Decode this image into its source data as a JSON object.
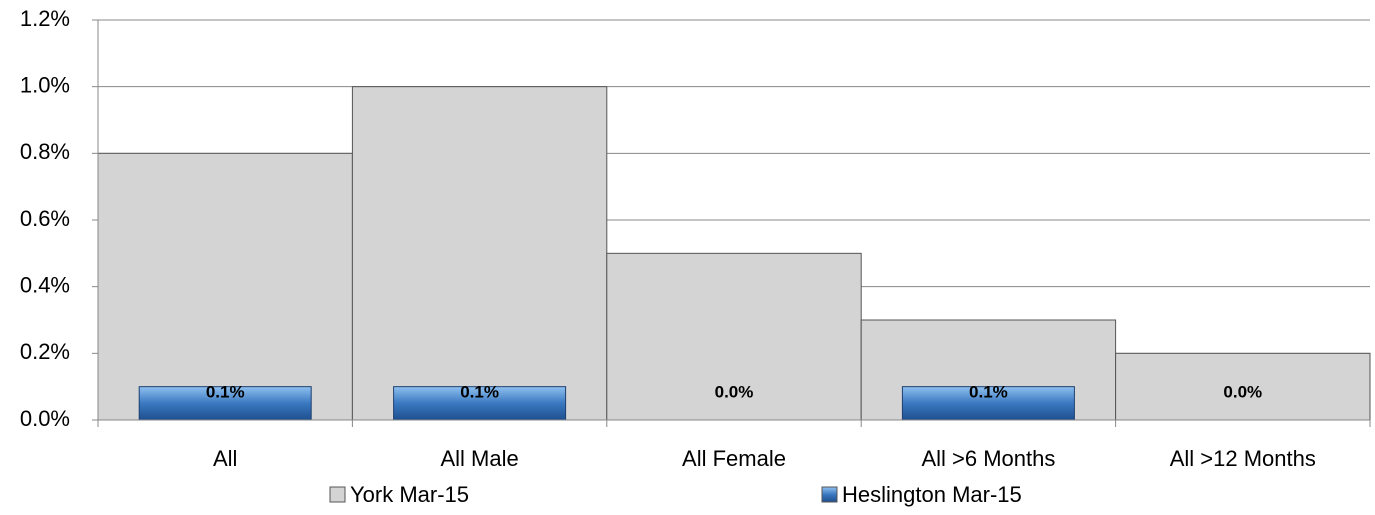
{
  "chart_data": {
    "type": "bar",
    "categories": [
      "All",
      "All Male",
      "All Female",
      "All >6 Months",
      "All >12 Months"
    ],
    "series": [
      {
        "name": "York Mar-15",
        "color": "#d4d4d4",
        "values": [
          0.8,
          1.0,
          0.5,
          0.3,
          0.2
        ]
      },
      {
        "name": "Heslington Mar-15",
        "color": "#3a78c0",
        "values": [
          0.1,
          0.1,
          0.0,
          0.1,
          0.0
        ],
        "value_labels": [
          "0.1%",
          "0.1%",
          "0.0%",
          "0.1%",
          "0.0%"
        ]
      }
    ],
    "ylim": [
      0,
      1.2
    ],
    "yticks": [
      {
        "value": 0,
        "label": "0.0%"
      },
      {
        "value": 0.2,
        "label": "0.2%"
      },
      {
        "value": 0.4,
        "label": "0.4%"
      },
      {
        "value": 0.6,
        "label": "0.6%"
      },
      {
        "value": 0.8,
        "label": "0.8%"
      },
      {
        "value": 1.0,
        "label": "1.0%"
      },
      {
        "value": 1.2,
        "label": "1.2%"
      }
    ],
    "grid": true,
    "legend": "bottom"
  }
}
